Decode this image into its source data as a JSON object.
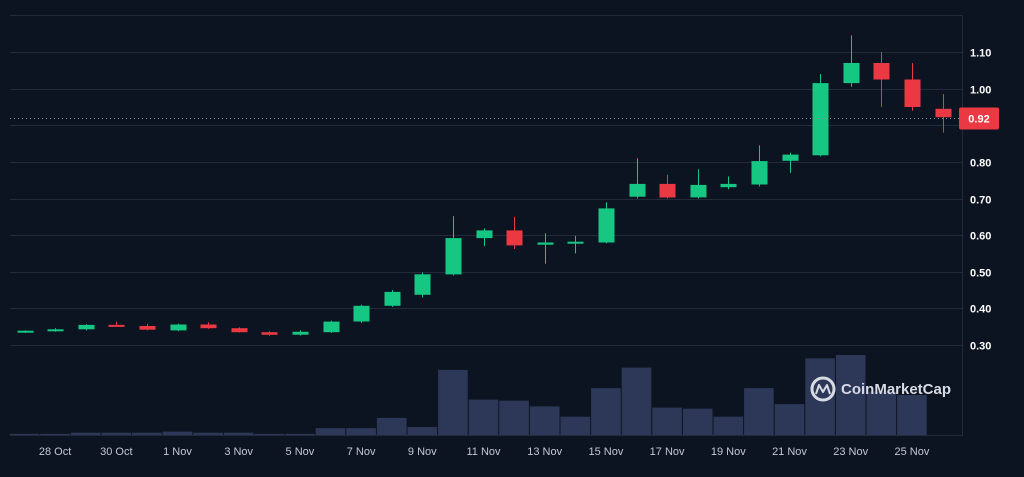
{
  "watermark": "CoinMarketCap",
  "colors": {
    "background": "#0d1421",
    "up": "#16c784",
    "down": "#ea3943",
    "volume": "#2d3858",
    "grid": "#232b3a",
    "price_tag": "#ea3943"
  },
  "chart_data": {
    "type": "candlestick",
    "title": "",
    "xlabel": "",
    "ylabel": "",
    "ylim": [
      0.26,
      1.17
    ],
    "y_ticks": [
      0.3,
      0.4,
      0.5,
      0.6,
      0.7,
      0.8,
      0.9,
      1.0,
      1.1
    ],
    "y_tick_labels": [
      "0.30",
      "0.40",
      "0.50",
      "0.60",
      "0.70",
      "0.80",
      "",
      "1.00",
      "1.10"
    ],
    "x_tick_labels": [
      "28 Oct",
      "30 Oct",
      "1 Nov",
      "3 Nov",
      "5 Nov",
      "7 Nov",
      "9 Nov",
      "11 Nov",
      "13 Nov",
      "15 Nov",
      "17 Nov",
      "19 Nov",
      "21 Nov",
      "23 Nov",
      "25 Nov"
    ],
    "x_tick_candle_index": [
      1,
      3,
      5,
      7,
      9,
      11,
      13,
      15,
      17,
      19,
      21,
      23,
      25,
      27,
      29
    ],
    "current_price": 0.92,
    "current_price_label": "0.92",
    "grid": true,
    "candles": [
      {
        "o": 0.336,
        "h": 0.34,
        "l": 0.333,
        "c": 0.339,
        "v": 1
      },
      {
        "o": 0.339,
        "h": 0.346,
        "l": 0.336,
        "c": 0.343,
        "v": 1
      },
      {
        "o": 0.343,
        "h": 0.357,
        "l": 0.34,
        "c": 0.355,
        "v": 2
      },
      {
        "o": 0.355,
        "h": 0.363,
        "l": 0.35,
        "c": 0.352,
        "v": 2
      },
      {
        "o": 0.352,
        "h": 0.358,
        "l": 0.34,
        "c": 0.342,
        "v": 2
      },
      {
        "o": 0.34,
        "h": 0.358,
        "l": 0.338,
        "c": 0.356,
        "v": 3
      },
      {
        "o": 0.356,
        "h": 0.362,
        "l": 0.344,
        "c": 0.346,
        "v": 2
      },
      {
        "o": 0.346,
        "h": 0.348,
        "l": 0.334,
        "c": 0.335,
        "v": 2
      },
      {
        "o": 0.335,
        "h": 0.338,
        "l": 0.325,
        "c": 0.328,
        "v": 1
      },
      {
        "o": 0.328,
        "h": 0.34,
        "l": 0.326,
        "c": 0.336,
        "v": 1
      },
      {
        "o": 0.335,
        "h": 0.366,
        "l": 0.333,
        "c": 0.364,
        "v": 6
      },
      {
        "o": 0.364,
        "h": 0.41,
        "l": 0.36,
        "c": 0.407,
        "v": 6
      },
      {
        "o": 0.407,
        "h": 0.45,
        "l": 0.404,
        "c": 0.445,
        "v": 15
      },
      {
        "o": 0.437,
        "h": 0.498,
        "l": 0.43,
        "c": 0.493,
        "v": 7
      },
      {
        "o": 0.493,
        "h": 0.652,
        "l": 0.49,
        "c": 0.592,
        "v": 57
      },
      {
        "o": 0.592,
        "h": 0.618,
        "l": 0.57,
        "c": 0.613,
        "v": 31
      },
      {
        "o": 0.613,
        "h": 0.65,
        "l": 0.562,
        "c": 0.572,
        "v": 30
      },
      {
        "o": 0.574,
        "h": 0.605,
        "l": 0.522,
        "c": 0.58,
        "v": 25
      },
      {
        "o": 0.578,
        "h": 0.598,
        "l": 0.55,
        "c": 0.582,
        "v": 16
      },
      {
        "o": 0.58,
        "h": 0.69,
        "l": 0.578,
        "c": 0.673,
        "v": 41
      },
      {
        "o": 0.705,
        "h": 0.81,
        "l": 0.7,
        "c": 0.74,
        "v": 59
      },
      {
        "o": 0.74,
        "h": 0.765,
        "l": 0.7,
        "c": 0.703,
        "v": 24
      },
      {
        "o": 0.703,
        "h": 0.78,
        "l": 0.7,
        "c": 0.737,
        "v": 23
      },
      {
        "o": 0.731,
        "h": 0.76,
        "l": 0.725,
        "c": 0.74,
        "v": 16
      },
      {
        "o": 0.738,
        "h": 0.845,
        "l": 0.733,
        "c": 0.802,
        "v": 41
      },
      {
        "o": 0.803,
        "h": 0.825,
        "l": 0.77,
        "c": 0.82,
        "v": 27
      },
      {
        "o": 0.818,
        "h": 1.04,
        "l": 0.815,
        "c": 1.015,
        "v": 67
      },
      {
        "o": 1.015,
        "h": 1.145,
        "l": 1.005,
        "c": 1.07,
        "v": 70
      },
      {
        "o": 1.07,
        "h": 1.1,
        "l": 0.95,
        "c": 1.025,
        "v": 38
      },
      {
        "o": 1.025,
        "h": 1.07,
        "l": 0.94,
        "c": 0.95,
        "v": 35
      },
      {
        "o": 0.945,
        "h": 0.985,
        "l": 0.88,
        "c": 0.922,
        "v": 0
      }
    ]
  }
}
